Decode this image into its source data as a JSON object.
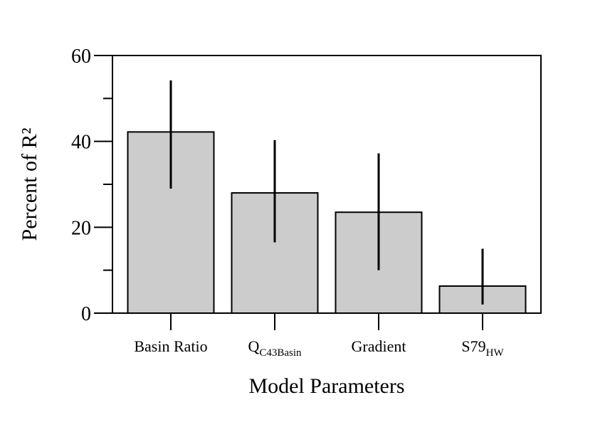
{
  "chart_data": {
    "type": "bar",
    "title": "",
    "xlabel": "Model Parameters",
    "ylabel": "Percent of R²",
    "ylim": [
      0,
      60
    ],
    "y_ticks": [
      "0",
      "20",
      "40",
      "60"
    ],
    "y_minor_ticks": [
      10,
      30,
      50
    ],
    "grid": false,
    "categories": [
      {
        "main": "Basin Ratio",
        "sub": ""
      },
      {
        "main": "Q",
        "sub": "C43Basin"
      },
      {
        "main": "Gradient",
        "sub": ""
      },
      {
        "main": "S79",
        "sub": "HW"
      }
    ],
    "values": [
      42.2,
      28.0,
      23.5,
      6.3
    ],
    "error_low": [
      29.0,
      16.5,
      10.0,
      2.0
    ],
    "error_high": [
      54.2,
      40.3,
      37.2,
      15.0
    ],
    "bar_color": "#cccccc",
    "bar_edge_color": "#000000",
    "error_bar_color": "#000000"
  }
}
